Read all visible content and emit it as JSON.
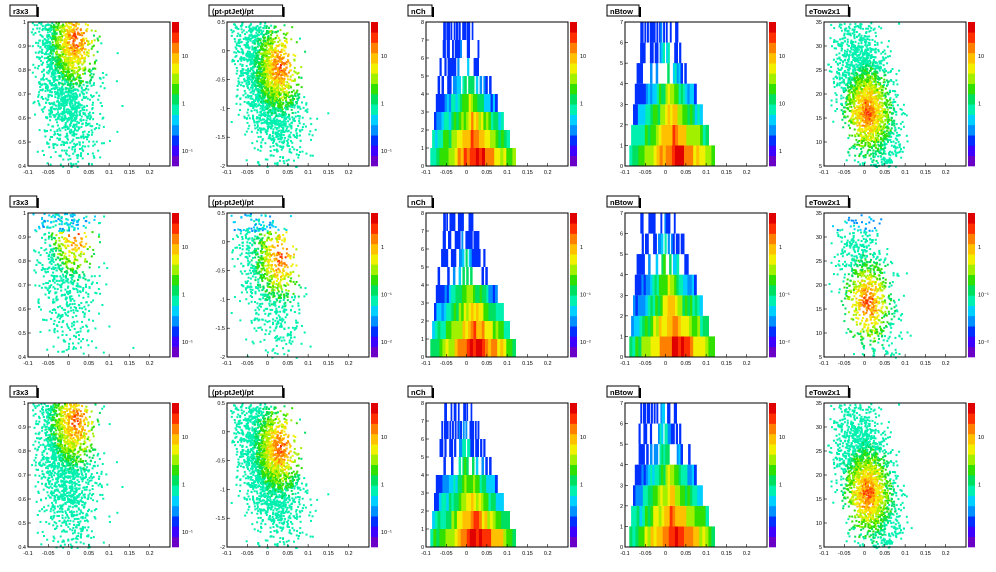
{
  "palette": [
    "#6a00c8",
    "#3c00ff",
    "#0030ff",
    "#0090ff",
    "#00d0ff",
    "#00f0b0",
    "#00e060",
    "#30e000",
    "#a0f000",
    "#f0f000",
    "#ffc000",
    "#ff8000",
    "#ff3000",
    "#e00000"
  ],
  "panels": [
    {
      "title": "r3x3",
      "type": "scatter",
      "xticks": [
        "-0.1",
        "-0.05",
        "0",
        "0.05",
        "0.1",
        "0.15",
        "0.2"
      ],
      "yticks": [
        "0.4",
        "0.5",
        "0.6",
        "0.7",
        "0.8",
        "0.9",
        "1"
      ],
      "zlabels": [
        "10",
        "1",
        "10⁻¹"
      ]
    },
    {
      "title": "(pt-ptJet)/pt",
      "type": "scatter",
      "xticks": [
        "-0.1",
        "-0.05",
        "0",
        "0.05",
        "0.1",
        "0.15",
        "0.2"
      ],
      "yticks": [
        "-2",
        "-1.5",
        "-1",
        "-0.5",
        "0",
        "0.5"
      ],
      "zlabels": [
        "10",
        "1",
        "10⁻¹"
      ]
    },
    {
      "title": "nCh",
      "type": "bands",
      "xticks": [
        "-0.1",
        "-0.05",
        "0",
        "0.05",
        "0.1",
        "0.15",
        "0.2"
      ],
      "yticks": [
        "0",
        "1",
        "2",
        "3",
        "4",
        "5",
        "6",
        "7",
        "8"
      ],
      "zlabels": [
        "10",
        "1"
      ]
    },
    {
      "title": "nBtow",
      "type": "bands",
      "xticks": [
        "-0.1",
        "-0.05",
        "0",
        "0.05",
        "0.1",
        "0.15",
        "0.2"
      ],
      "yticks": [
        "0",
        "1",
        "2",
        "3",
        "4",
        "5",
        "6",
        "7"
      ],
      "zlabels": [
        "10",
        "10",
        "1"
      ]
    },
    {
      "title": "eTow2x1",
      "type": "scatter",
      "xticks": [
        "-0.1",
        "-0.05",
        "0",
        "0.05",
        "0.1",
        "0.15",
        "0.2"
      ],
      "yticks": [
        "5",
        "10",
        "15",
        "20",
        "25",
        "30",
        "35"
      ],
      "zlabels": [
        "10",
        "1"
      ]
    },
    {
      "title": "r3x3",
      "type": "scatter",
      "xticks": [
        "-0.1",
        "-0.05",
        "0",
        "0.05",
        "0.1",
        "0.15",
        "0.2"
      ],
      "yticks": [
        "0.4",
        "0.5",
        "0.6",
        "0.7",
        "0.8",
        "0.9",
        "1"
      ],
      "zlabels": [
        "10",
        "1",
        "10⁻¹"
      ]
    },
    {
      "title": "(pt-ptJet)/pt",
      "type": "scatter",
      "xticks": [
        "-0.1",
        "-0.05",
        "0",
        "0.05",
        "0.1",
        "0.15",
        "0.2"
      ],
      "yticks": [
        "-2",
        "-1.5",
        "-1",
        "-0.5",
        "0",
        "0.5"
      ],
      "zlabels": [
        "1",
        "10⁻¹",
        "10⁻²"
      ]
    },
    {
      "title": "nCh",
      "type": "bands",
      "xticks": [
        "-0.1",
        "-0.05",
        "0",
        "0.05",
        "0.1",
        "0.15",
        "0.2"
      ],
      "yticks": [
        "0",
        "1",
        "2",
        "3",
        "4",
        "5",
        "6",
        "7",
        "8"
      ],
      "zlabels": [
        "1",
        "10⁻¹",
        "10⁻²"
      ]
    },
    {
      "title": "nBtow",
      "type": "bands",
      "xticks": [
        "-0.1",
        "-0.05",
        "0",
        "0.05",
        "0.1",
        "0.15",
        "0.2"
      ],
      "yticks": [
        "0",
        "1",
        "2",
        "3",
        "4",
        "5",
        "6",
        "7"
      ],
      "zlabels": [
        "1",
        "10⁻¹",
        "10⁻²"
      ]
    },
    {
      "title": "eTow2x1",
      "type": "scatter",
      "xticks": [
        "-0.1",
        "-0.05",
        "0",
        "0.05",
        "0.1",
        "0.15",
        "0.2"
      ],
      "yticks": [
        "5",
        "10",
        "15",
        "20",
        "25",
        "30",
        "35"
      ],
      "zlabels": [
        "1",
        "10⁻¹",
        "10⁻²"
      ]
    },
    {
      "title": "r3x3",
      "type": "scatter",
      "xticks": [
        "-0.1",
        "-0.05",
        "0",
        "0.05",
        "0.1",
        "0.15",
        "0.2"
      ],
      "yticks": [
        "0.4",
        "0.5",
        "0.6",
        "0.7",
        "0.8",
        "0.9",
        "1"
      ],
      "zlabels": [
        "10",
        "1",
        "10⁻¹"
      ]
    },
    {
      "title": "(pt-ptJet)/pt",
      "type": "scatter",
      "xticks": [
        "-0.1",
        "-0.05",
        "0",
        "0.05",
        "0.1",
        "0.15",
        "0.2"
      ],
      "yticks": [
        "-2",
        "-1.5",
        "-1",
        "-0.5",
        "0",
        "0.5"
      ],
      "zlabels": [
        "10",
        "1",
        "10⁻¹"
      ]
    },
    {
      "title": "nCh",
      "type": "bands",
      "xticks": [
        "-0.1",
        "-0.05",
        "0",
        "0.05",
        "0.1",
        "0.15",
        "0.2"
      ],
      "yticks": [
        "0",
        "1",
        "2",
        "3",
        "4",
        "5",
        "6",
        "7",
        "8"
      ],
      "zlabels": [
        "10",
        "1"
      ]
    },
    {
      "title": "nBtow",
      "type": "bands",
      "xticks": [
        "-0.1",
        "-0.05",
        "0",
        "0.05",
        "0.1",
        "0.15",
        "0.2"
      ],
      "yticks": [
        "0",
        "1",
        "2",
        "3",
        "4",
        "5",
        "6",
        "7"
      ],
      "zlabels": [
        "10",
        "1"
      ]
    },
    {
      "title": "eTow2x1",
      "type": "scatter",
      "xticks": [
        "-0.1",
        "-0.05",
        "0",
        "0.05",
        "0.1",
        "0.15",
        "0.2"
      ],
      "yticks": [
        "5",
        "10",
        "15",
        "20",
        "25",
        "30",
        "35"
      ],
      "zlabels": [
        "10",
        "1"
      ]
    }
  ],
  "chart_data": [
    {
      "type": "heatmap",
      "title": "r3x3",
      "xlim": [
        -0.1,
        0.25
      ],
      "ylim": [
        0.4,
        1.0
      ],
      "z_scale": "log"
    },
    {
      "type": "heatmap",
      "title": "(pt-ptJet)/pt",
      "xlim": [
        -0.1,
        0.25
      ],
      "ylim": [
        -2,
        0.8
      ],
      "z_scale": "log"
    },
    {
      "type": "heatmap",
      "title": "nCh",
      "xlim": [
        -0.1,
        0.25
      ],
      "ylim": [
        0,
        8
      ],
      "z_scale": "log"
    },
    {
      "type": "heatmap",
      "title": "nBtow",
      "xlim": [
        -0.1,
        0.25
      ],
      "ylim": [
        0,
        7
      ],
      "z_scale": "log"
    },
    {
      "type": "heatmap",
      "title": "eTow2x1",
      "xlim": [
        -0.1,
        0.25
      ],
      "ylim": [
        5,
        35
      ],
      "z_scale": "log"
    },
    {
      "type": "heatmap",
      "title": "r3x3",
      "xlim": [
        -0.1,
        0.25
      ],
      "ylim": [
        0.4,
        1.0
      ],
      "z_scale": "log"
    },
    {
      "type": "heatmap",
      "title": "(pt-ptJet)/pt",
      "xlim": [
        -0.1,
        0.25
      ],
      "ylim": [
        -2,
        0.8
      ],
      "z_scale": "log"
    },
    {
      "type": "heatmap",
      "title": "nCh",
      "xlim": [
        -0.1,
        0.25
      ],
      "ylim": [
        0,
        8
      ],
      "z_scale": "log"
    },
    {
      "type": "heatmap",
      "title": "nBtow",
      "xlim": [
        -0.1,
        0.25
      ],
      "ylim": [
        0,
        7
      ],
      "z_scale": "log"
    },
    {
      "type": "heatmap",
      "title": "eTow2x1",
      "xlim": [
        -0.1,
        0.25
      ],
      "ylim": [
        5,
        35
      ],
      "z_scale": "log"
    },
    {
      "type": "heatmap",
      "title": "r3x3",
      "xlim": [
        -0.1,
        0.25
      ],
      "ylim": [
        0.4,
        1.0
      ],
      "z_scale": "log"
    },
    {
      "type": "heatmap",
      "title": "(pt-ptJet)/pt",
      "xlim": [
        -0.1,
        0.25
      ],
      "ylim": [
        -2,
        0.8
      ],
      "z_scale": "log"
    },
    {
      "type": "heatmap",
      "title": "nCh",
      "xlim": [
        -0.1,
        0.25
      ],
      "ylim": [
        0,
        8
      ],
      "z_scale": "log"
    },
    {
      "type": "heatmap",
      "title": "nBtow",
      "xlim": [
        -0.1,
        0.25
      ],
      "ylim": [
        0,
        7
      ],
      "z_scale": "log"
    },
    {
      "type": "heatmap",
      "title": "eTow2x1",
      "xlim": [
        -0.1,
        0.25
      ],
      "ylim": [
        5,
        35
      ],
      "z_scale": "log"
    }
  ]
}
